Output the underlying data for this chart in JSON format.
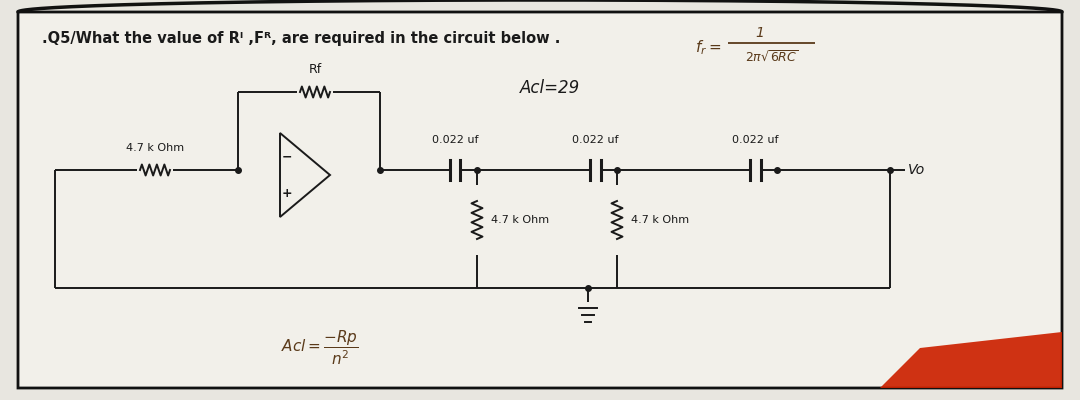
{
  "title": ".Q5/What the value of Rᴵ ,Fᴿ, are required in the circuit below .",
  "acl_label": "Acl=29",
  "acl_bottom_label": "Acl=⁻Rp/n²",
  "rf_label": "Rf",
  "r_input_label": "4.7 k Ohm",
  "r1_label": "4.7 k Ohm",
  "r2_label": "4.7 k Ohm",
  "c1_label": "0.022 uf",
  "c2_label": "0.022 uf",
  "c3_label": "0.022 uf",
  "vo_label": "Vo",
  "background_color": "#e8e6e0",
  "page_color": "#f2f0ea",
  "line_color": "#1a1a1a",
  "text_color": "#1a1a1a",
  "formula_color": "#5a3a1a"
}
